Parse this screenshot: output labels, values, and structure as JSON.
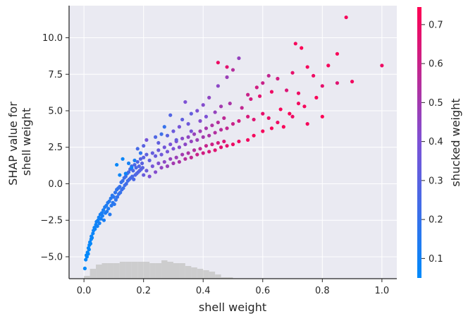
{
  "chart_data": {
    "type": "scatter",
    "xlabel": "shell weight",
    "ylabel_lines": [
      "SHAP value for",
      "shell weight"
    ],
    "colorbar_label": "shucked weight",
    "xlim": [
      -0.05,
      1.05
    ],
    "ylim": [
      -6.5,
      12.2
    ],
    "xticks": [
      0.0,
      0.2,
      0.4,
      0.6,
      0.8,
      1.0
    ],
    "xtick_labels": [
      "0.0",
      "0.2",
      "0.4",
      "0.6",
      "0.8",
      "1.0"
    ],
    "yticks": [
      -5.0,
      -2.5,
      0.0,
      2.5,
      5.0,
      7.5,
      10.0
    ],
    "ytick_labels": [
      "−5.0",
      "−2.5",
      "0.0",
      "2.5",
      "5.0",
      "7.5",
      "10.0"
    ],
    "colorbar_range": [
      0.05,
      0.745
    ],
    "colorbar_ticks": [
      0.1,
      0.2,
      0.3,
      0.4,
      0.5,
      0.6,
      0.7
    ],
    "colorbar_tick_labels": [
      "0.1",
      "0.2",
      "0.3",
      "0.4",
      "0.5",
      "0.6",
      "0.7"
    ],
    "colormap": [
      "#008afb",
      "#7c52d6",
      "#ff0052"
    ],
    "grid": true,
    "background": "#eaeaf2",
    "histogram": {
      "bin_edges": [
        0.0,
        0.02,
        0.04,
        0.06,
        0.08,
        0.1,
        0.12,
        0.14,
        0.16,
        0.18,
        0.2,
        0.22,
        0.24,
        0.26,
        0.28,
        0.3,
        0.32,
        0.34,
        0.36,
        0.38,
        0.4,
        0.42,
        0.44,
        0.46,
        0.48,
        0.5
      ],
      "counts": [
        2,
        7,
        10,
        11,
        11,
        11,
        12,
        12,
        12,
        12,
        12,
        11,
        11,
        13,
        12,
        11,
        11,
        9,
        8,
        7,
        6,
        5,
        3,
        1,
        1
      ],
      "color": "#c8c8c8"
    },
    "points": [
      [
        0.003,
        -5.8,
        0.05
      ],
      [
        0.006,
        -5.2,
        0.06
      ],
      [
        0.008,
        -4.9,
        0.06
      ],
      [
        0.01,
        -5.0,
        0.06
      ],
      [
        0.012,
        -4.7,
        0.06
      ],
      [
        0.014,
        -4.8,
        0.06
      ],
      [
        0.015,
        -4.4,
        0.06
      ],
      [
        0.017,
        -4.5,
        0.07
      ],
      [
        0.018,
        -4.2,
        0.07
      ],
      [
        0.02,
        -4.0,
        0.07
      ],
      [
        0.022,
        -4.1,
        0.07
      ],
      [
        0.024,
        -3.8,
        0.07
      ],
      [
        0.025,
        -3.6,
        0.08
      ],
      [
        0.027,
        -3.7,
        0.08
      ],
      [
        0.03,
        -3.4,
        0.08
      ],
      [
        0.032,
        -3.2,
        0.08
      ],
      [
        0.035,
        -3.0,
        0.09
      ],
      [
        0.037,
        -3.1,
        0.09
      ],
      [
        0.04,
        -2.8,
        0.09
      ],
      [
        0.042,
        -2.6,
        0.1
      ],
      [
        0.045,
        -2.9,
        0.1
      ],
      [
        0.047,
        -2.5,
        0.1
      ],
      [
        0.05,
        -2.3,
        0.1
      ],
      [
        0.052,
        -2.7,
        0.11
      ],
      [
        0.055,
        -2.1,
        0.11
      ],
      [
        0.057,
        -2.4,
        0.11
      ],
      [
        0.06,
        -2.0,
        0.12
      ],
      [
        0.062,
        -2.2,
        0.12
      ],
      [
        0.065,
        -1.8,
        0.12
      ],
      [
        0.067,
        -2.5,
        0.12
      ],
      [
        0.07,
        -1.6,
        0.13
      ],
      [
        0.072,
        -2.0,
        0.13
      ],
      [
        0.075,
        -1.5,
        0.13
      ],
      [
        0.077,
        -1.9,
        0.14
      ],
      [
        0.08,
        -1.3,
        0.14
      ],
      [
        0.082,
        -1.7,
        0.14
      ],
      [
        0.085,
        -1.2,
        0.15
      ],
      [
        0.087,
        -2.1,
        0.15
      ],
      [
        0.09,
        -1.0,
        0.15
      ],
      [
        0.092,
        -1.5,
        0.16
      ],
      [
        0.095,
        -0.8,
        0.16
      ],
      [
        0.097,
        -1.3,
        0.16
      ],
      [
        0.1,
        -0.9,
        0.17
      ],
      [
        0.102,
        -1.4,
        0.17
      ],
      [
        0.105,
        -0.6,
        0.18
      ],
      [
        0.107,
        -1.1,
        0.18
      ],
      [
        0.11,
        -0.4,
        0.18
      ],
      [
        0.112,
        -0.9,
        0.19
      ],
      [
        0.115,
        -0.3,
        0.19
      ],
      [
        0.117,
        -0.7,
        0.19
      ],
      [
        0.12,
        -0.2,
        0.2
      ],
      [
        0.122,
        -0.6,
        0.2
      ],
      [
        0.125,
        0.1,
        0.2
      ],
      [
        0.127,
        -0.4,
        0.21
      ],
      [
        0.13,
        0.2,
        0.21
      ],
      [
        0.132,
        -0.3,
        0.21
      ],
      [
        0.135,
        0.4,
        0.22
      ],
      [
        0.137,
        -0.1,
        0.22
      ],
      [
        0.14,
        0.5,
        0.22
      ],
      [
        0.142,
        0.0,
        0.23
      ],
      [
        0.145,
        0.7,
        0.23
      ],
      [
        0.147,
        0.2,
        0.23
      ],
      [
        0.15,
        0.8,
        0.24
      ],
      [
        0.152,
        0.3,
        0.24
      ],
      [
        0.155,
        1.0,
        0.24
      ],
      [
        0.157,
        0.4,
        0.25
      ],
      [
        0.16,
        1.2,
        0.25
      ],
      [
        0.162,
        0.5,
        0.25
      ],
      [
        0.165,
        0.9,
        0.26
      ],
      [
        0.167,
        0.3,
        0.26
      ],
      [
        0.17,
        1.3,
        0.26
      ],
      [
        0.172,
        0.6,
        0.27
      ],
      [
        0.175,
        1.1,
        0.27
      ],
      [
        0.177,
        0.7,
        0.27
      ],
      [
        0.18,
        1.5,
        0.28
      ],
      [
        0.182,
        0.8,
        0.28
      ],
      [
        0.185,
        1.2,
        0.28
      ],
      [
        0.187,
        0.9,
        0.29
      ],
      [
        0.19,
        1.7,
        0.29
      ],
      [
        0.192,
        1.0,
        0.29
      ],
      [
        0.195,
        1.4,
        0.3
      ],
      [
        0.197,
        1.1,
        0.3
      ],
      [
        0.2,
        1.8,
        0.3
      ],
      [
        0.2,
        0.6,
        0.34
      ],
      [
        0.21,
        2.0,
        0.31
      ],
      [
        0.21,
        0.9,
        0.35
      ],
      [
        0.22,
        1.6,
        0.32
      ],
      [
        0.22,
        0.5,
        0.4
      ],
      [
        0.23,
        2.1,
        0.33
      ],
      [
        0.23,
        1.2,
        0.38
      ],
      [
        0.24,
        1.9,
        0.34
      ],
      [
        0.24,
        0.8,
        0.42
      ],
      [
        0.25,
        2.3,
        0.35
      ],
      [
        0.25,
        1.4,
        0.41
      ],
      [
        0.26,
        2.0,
        0.36
      ],
      [
        0.26,
        1.1,
        0.45
      ],
      [
        0.27,
        2.5,
        0.37
      ],
      [
        0.27,
        1.5,
        0.44
      ],
      [
        0.28,
        2.2,
        0.38
      ],
      [
        0.28,
        1.2,
        0.47
      ],
      [
        0.29,
        2.7,
        0.39
      ],
      [
        0.29,
        1.7,
        0.46
      ],
      [
        0.3,
        2.4,
        0.4
      ],
      [
        0.3,
        1.4,
        0.5
      ],
      [
        0.31,
        2.9,
        0.41
      ],
      [
        0.31,
        1.8,
        0.48
      ],
      [
        0.32,
        2.5,
        0.42
      ],
      [
        0.32,
        1.5,
        0.52
      ],
      [
        0.33,
        3.1,
        0.43
      ],
      [
        0.33,
        2.0,
        0.5
      ],
      [
        0.34,
        2.7,
        0.44
      ],
      [
        0.34,
        1.7,
        0.55
      ],
      [
        0.35,
        3.2,
        0.45
      ],
      [
        0.35,
        2.1,
        0.53
      ],
      [
        0.36,
        2.9,
        0.46
      ],
      [
        0.36,
        1.8,
        0.58
      ],
      [
        0.37,
        3.4,
        0.47
      ],
      [
        0.37,
        2.3,
        0.55
      ],
      [
        0.38,
        3.0,
        0.48
      ],
      [
        0.38,
        2.0,
        0.6
      ],
      [
        0.39,
        3.6,
        0.49
      ],
      [
        0.39,
        2.4,
        0.57
      ],
      [
        0.4,
        3.2,
        0.5
      ],
      [
        0.4,
        2.1,
        0.62
      ],
      [
        0.41,
        3.8,
        0.51
      ],
      [
        0.41,
        2.6,
        0.59
      ],
      [
        0.42,
        3.3,
        0.52
      ],
      [
        0.42,
        2.2,
        0.64
      ],
      [
        0.43,
        4.0,
        0.53
      ],
      [
        0.43,
        2.7,
        0.61
      ],
      [
        0.44,
        3.5,
        0.54
      ],
      [
        0.44,
        2.3,
        0.66
      ],
      [
        0.45,
        4.2,
        0.55
      ],
      [
        0.45,
        2.8,
        0.63
      ],
      [
        0.46,
        3.7,
        0.56
      ],
      [
        0.46,
        2.5,
        0.67
      ],
      [
        0.47,
        4.5,
        0.57
      ],
      [
        0.47,
        2.9,
        0.65
      ],
      [
        0.48,
        3.8,
        0.58
      ],
      [
        0.48,
        2.6,
        0.68
      ],
      [
        0.5,
        4.1,
        0.6
      ],
      [
        0.5,
        2.7,
        0.7
      ],
      [
        0.52,
        4.3,
        0.62
      ],
      [
        0.52,
        2.9,
        0.7
      ],
      [
        0.55,
        4.6,
        0.64
      ],
      [
        0.55,
        3.0,
        0.71
      ],
      [
        0.57,
        4.4,
        0.66
      ],
      [
        0.57,
        3.3,
        0.72
      ],
      [
        0.6,
        4.8,
        0.68
      ],
      [
        0.6,
        3.6,
        0.72
      ],
      [
        0.62,
        4.5,
        0.69
      ],
      [
        0.63,
        3.8,
        0.73
      ],
      [
        0.65,
        4.2,
        0.7
      ],
      [
        0.67,
        3.9,
        0.73
      ],
      [
        0.7,
        4.6,
        0.7
      ],
      [
        0.72,
        5.5,
        0.71
      ],
      [
        0.75,
        4.1,
        0.72
      ],
      [
        0.8,
        4.6,
        0.74
      ],
      [
        0.18,
        2.4,
        0.25
      ],
      [
        0.17,
        1.6,
        0.12
      ],
      [
        0.16,
        1.1,
        0.1
      ],
      [
        0.15,
        1.4,
        0.11
      ],
      [
        0.2,
        2.6,
        0.3
      ],
      [
        0.21,
        3.0,
        0.38
      ],
      [
        0.12,
        0.6,
        0.08
      ],
      [
        0.14,
        0.7,
        0.09
      ],
      [
        0.3,
        3.6,
        0.35
      ],
      [
        0.32,
        3.9,
        0.38
      ],
      [
        0.35,
        4.1,
        0.36
      ],
      [
        0.33,
        4.4,
        0.32
      ],
      [
        0.38,
        5.0,
        0.4
      ],
      [
        0.4,
        5.4,
        0.42
      ],
      [
        0.42,
        5.9,
        0.45
      ],
      [
        0.45,
        6.7,
        0.44
      ],
      [
        0.48,
        7.3,
        0.48
      ],
      [
        0.52,
        8.6,
        0.46
      ],
      [
        0.5,
        7.8,
        0.55
      ],
      [
        0.55,
        6.1,
        0.6
      ],
      [
        0.58,
        6.6,
        0.62
      ],
      [
        0.6,
        6.9,
        0.6
      ],
      [
        0.62,
        7.4,
        0.58
      ],
      [
        0.65,
        7.2,
        0.62
      ],
      [
        0.68,
        6.4,
        0.65
      ],
      [
        0.7,
        7.6,
        0.68
      ],
      [
        0.72,
        6.2,
        0.7
      ],
      [
        0.75,
        8.0,
        0.72
      ],
      [
        0.77,
        7.4,
        0.7
      ],
      [
        0.8,
        6.7,
        0.68
      ],
      [
        0.82,
        8.1,
        0.72
      ],
      [
        0.85,
        8.9,
        0.73
      ],
      [
        0.9,
        7.0,
        0.71
      ],
      [
        0.88,
        11.4,
        0.72
      ],
      [
        0.71,
        9.6,
        0.72
      ],
      [
        0.73,
        9.3,
        0.74
      ],
      [
        0.85,
        6.9,
        0.66
      ],
      [
        1.0,
        8.1,
        0.7
      ],
      [
        0.45,
        8.3,
        0.7
      ],
      [
        0.48,
        8.0,
        0.67
      ],
      [
        0.36,
        4.8,
        0.33
      ],
      [
        0.29,
        4.7,
        0.28
      ],
      [
        0.34,
        5.6,
        0.4
      ],
      [
        0.27,
        3.9,
        0.2
      ],
      [
        0.26,
        3.4,
        0.22
      ],
      [
        0.24,
        3.2,
        0.27
      ],
      [
        0.19,
        2.1,
        0.18
      ],
      [
        0.13,
        1.7,
        0.08
      ],
      [
        0.11,
        1.3,
        0.07
      ],
      [
        0.25,
        2.8,
        0.32
      ],
      [
        0.28,
        3.3,
        0.3
      ],
      [
        0.31,
        3.0,
        0.34
      ],
      [
        0.36,
        3.6,
        0.39
      ],
      [
        0.39,
        4.3,
        0.42
      ],
      [
        0.41,
        4.6,
        0.4
      ],
      [
        0.44,
        4.9,
        0.46
      ],
      [
        0.46,
        5.3,
        0.5
      ],
      [
        0.49,
        5.5,
        0.52
      ],
      [
        0.53,
        5.2,
        0.58
      ],
      [
        0.56,
        5.8,
        0.63
      ],
      [
        0.59,
        6.0,
        0.67
      ],
      [
        0.63,
        6.3,
        0.7
      ],
      [
        0.66,
        5.1,
        0.72
      ],
      [
        0.69,
        4.8,
        0.73
      ],
      [
        0.74,
        5.3,
        0.72
      ],
      [
        0.78,
        5.9,
        0.73
      ]
    ]
  }
}
